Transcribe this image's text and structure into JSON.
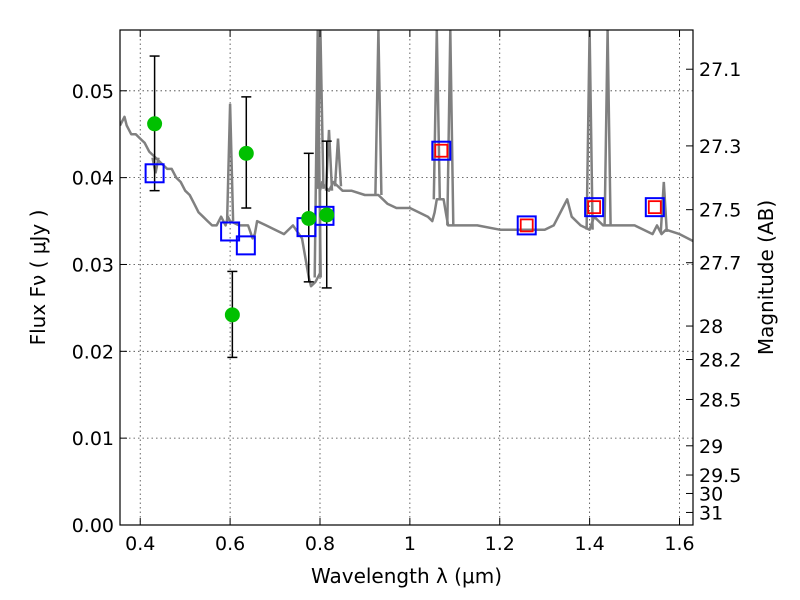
{
  "chart_data": {
    "type": "scatter",
    "title": "",
    "xlabel": "Wavelength  λ (μm)",
    "ylabel": "Flux  Fν  ( μJy )",
    "y2label": "Magnitude (AB)",
    "xlim": [
      0.355,
      1.63
    ],
    "ylim": [
      0.0,
      0.057
    ],
    "grid": true,
    "x_ticks": [
      0.4,
      0.6,
      0.8,
      1.0,
      1.2,
      1.4,
      1.6
    ],
    "x_tick_labels": [
      "0.4",
      "0.6",
      "0.8",
      "1",
      "1.2",
      "1.4",
      "1.6"
    ],
    "y_ticks": [
      0.0,
      0.01,
      0.02,
      0.03,
      0.04,
      0.05
    ],
    "y_tick_labels": [
      "0.00",
      "0.01",
      "0.02",
      "0.03",
      "0.04",
      "0.05"
    ],
    "y2_ticks": [
      27.1,
      27.3,
      27.5,
      27.7,
      28,
      28.2,
      28.5,
      29,
      29.5,
      30,
      31
    ],
    "y2_tick_labels": [
      "27.1",
      "27.3",
      "27.5",
      "27.7",
      "28",
      "28.2",
      "28.5",
      "29",
      "29.5",
      "30",
      "31"
    ],
    "series": [
      {
        "kind": "model_spectrum",
        "color": "#808080",
        "x": [
          0.355,
          0.365,
          0.37,
          0.38,
          0.39,
          0.4,
          0.41,
          0.42,
          0.43,
          0.44,
          0.45,
          0.46,
          0.47,
          0.48,
          0.49,
          0.5,
          0.51,
          0.52,
          0.53,
          0.54,
          0.55,
          0.56,
          0.57,
          0.58,
          0.59,
          0.595,
          0.6,
          0.62,
          0.64,
          0.65,
          0.655,
          0.66,
          0.68,
          0.7,
          0.72,
          0.74,
          0.76,
          0.775,
          0.78,
          0.79,
          0.8,
          0.8,
          0.805,
          0.81,
          0.82,
          0.83,
          0.85,
          0.87,
          0.9,
          0.93,
          0.95,
          0.97,
          1.0,
          1.02,
          1.04,
          1.05,
          1.055,
          1.06,
          1.075,
          1.08,
          1.085,
          1.1,
          1.15,
          1.2,
          1.25,
          1.3,
          1.32,
          1.34,
          1.35,
          1.36,
          1.38,
          1.4,
          1.41,
          1.43,
          1.45,
          1.5,
          1.52,
          1.54,
          1.55,
          1.56,
          1.57,
          1.6,
          1.63
        ],
        "y": [
          0.046,
          0.047,
          0.046,
          0.045,
          0.045,
          0.0445,
          0.044,
          0.043,
          0.0425,
          0.042,
          0.0415,
          0.041,
          0.041,
          0.04,
          0.0395,
          0.0385,
          0.038,
          0.037,
          0.036,
          0.0355,
          0.035,
          0.0345,
          0.0345,
          0.0355,
          0.0345,
          0.0355,
          0.035,
          0.0345,
          0.0345,
          0.033,
          0.0335,
          0.035,
          0.0345,
          0.034,
          0.0335,
          0.0345,
          0.033,
          0.0285,
          0.0275,
          0.028,
          0.029,
          0.0385,
          0.0395,
          0.039,
          0.0385,
          0.0395,
          0.0385,
          0.0385,
          0.038,
          0.038,
          0.037,
          0.0365,
          0.0365,
          0.036,
          0.0355,
          0.035,
          0.036,
          0.0375,
          0.0375,
          0.036,
          0.0345,
          0.0345,
          0.0345,
          0.034,
          0.034,
          0.034,
          0.0345,
          0.0365,
          0.0375,
          0.0355,
          0.0345,
          0.034,
          0.0355,
          0.0345,
          0.0345,
          0.0345,
          0.034,
          0.0335,
          0.0345,
          0.0335,
          0.034,
          0.0335,
          0.0327
        ]
      },
      {
        "kind": "model_emission_lines",
        "color": "#808080",
        "lines": [
          {
            "x": 0.434,
            "peak": 0.0405
          },
          {
            "x": 0.6,
            "peak": 0.0485
          },
          {
            "x": 0.795,
            "peak": 0.057
          },
          {
            "x": 0.801,
            "peak": 0.057
          },
          {
            "x": 0.82,
            "peak": 0.0455
          },
          {
            "x": 0.84,
            "peak": 0.0445
          },
          {
            "x": 0.93,
            "peak": 0.057
          },
          {
            "x": 1.06,
            "peak": 0.057
          },
          {
            "x": 1.09,
            "peak": 0.057
          },
          {
            "x": 1.4,
            "peak": 0.057
          },
          {
            "x": 1.44,
            "peak": 0.057
          },
          {
            "x": 1.565,
            "peak": 0.0395
          }
        ]
      },
      {
        "kind": "model_band_flux",
        "marker": "square",
        "color": "#0000ff",
        "x": [
          0.432,
          0.6,
          0.635,
          0.77,
          0.81,
          1.07,
          1.26,
          1.41,
          1.545
        ],
        "y": [
          0.0405,
          0.0338,
          0.0322,
          0.0343,
          0.0356,
          0.0431,
          0.0345,
          0.0366,
          0.0366
        ]
      },
      {
        "kind": "upper_limits",
        "marker": "square",
        "color": "#ff0000",
        "x": [
          1.07,
          1.26,
          1.41,
          1.545
        ],
        "y": [
          0.0431,
          0.0345,
          0.0366,
          0.0366
        ]
      },
      {
        "kind": "observed",
        "marker": "circle",
        "color": "#00c000",
        "errorbar_color": "#000000",
        "x": [
          0.432,
          0.636,
          0.605,
          0.775,
          0.815
        ],
        "y": [
          0.0462,
          0.0428,
          0.0242,
          0.0353,
          0.0357
        ],
        "yerr_low": [
          0.0077,
          0.0063,
          0.0049,
          0.0073,
          0.0084
        ],
        "yerr_high": [
          0.0078,
          0.0065,
          0.005,
          0.0075,
          0.0085
        ]
      }
    ]
  }
}
